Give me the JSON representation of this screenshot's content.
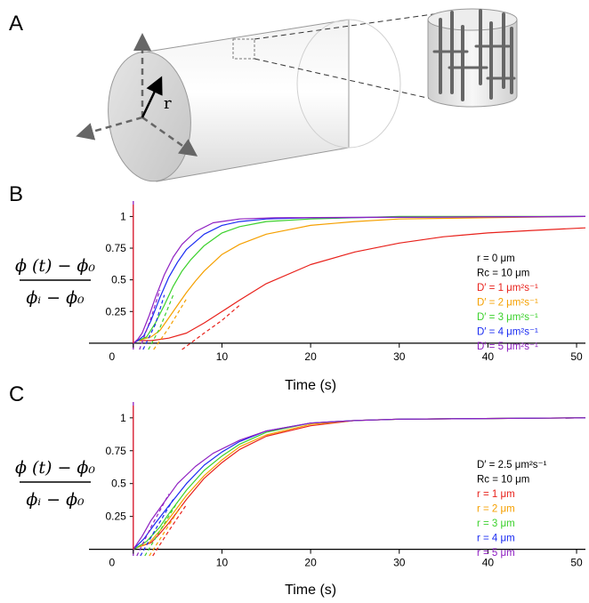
{
  "panels": {
    "a": "A",
    "b": "B",
    "c": "C"
  },
  "schematic": {
    "radius_label": "r"
  },
  "y_axis_label": {
    "numerator": "ϕ (t) − ϕ₀",
    "denominator": "ϕᵢ − ϕ₀"
  },
  "colors": {
    "red": "#e8211b",
    "orange": "#f5a000",
    "green": "#3bd12c",
    "blue": "#1a2bf2",
    "purple": "#8f20c2",
    "black": "#000000"
  },
  "chart_data": [
    {
      "type": "line",
      "panel": "B",
      "xlabel": "Time (s)",
      "xlim": [
        -5,
        51
      ],
      "ylim": [
        -0.05,
        1.08
      ],
      "x_ticks": [
        0,
        10,
        20,
        30,
        40,
        50
      ],
      "y_ticks": [
        0.25,
        0.5,
        0.75,
        1
      ],
      "legend_position": "right",
      "legend": [
        {
          "label": "r = 0 μm",
          "color": "#000000"
        },
        {
          "label": "Rc = 10 μm",
          "color": "#000000"
        },
        {
          "label": "D′ = 1 μm²s⁻¹",
          "color": "#e8211b"
        },
        {
          "label": "D′ = 2 μm²s⁻¹",
          "color": "#f5a000"
        },
        {
          "label": "D′ = 3 μm²s⁻¹",
          "color": "#3bd12c"
        },
        {
          "label": "D′ = 4 μm²s⁻¹",
          "color": "#1a2bf2"
        },
        {
          "label": "D′ = 5 μm²s⁻¹",
          "color": "#8f20c2"
        }
      ],
      "series": [
        {
          "color": "#e8211b",
          "solid": [
            [
              0.5,
              0.02
            ],
            [
              2,
              0.02
            ],
            [
              4,
              0.04
            ],
            [
              6,
              0.08
            ],
            [
              8,
              0.16
            ],
            [
              10,
              0.25
            ],
            [
              12,
              0.34
            ],
            [
              15,
              0.47
            ],
            [
              20,
              0.62
            ],
            [
              25,
              0.72
            ],
            [
              30,
              0.79
            ],
            [
              35,
              0.84
            ],
            [
              40,
              0.87
            ],
            [
              45,
              0.89
            ],
            [
              51,
              0.91
            ]
          ],
          "fit": [
            [
              5.5,
              -0.05
            ],
            [
              8,
              0.08
            ],
            [
              10,
              0.18
            ],
            [
              12,
              0.3
            ]
          ]
        },
        {
          "color": "#f5a000",
          "solid": [
            [
              0.5,
              0.02
            ],
            [
              2,
              0.05
            ],
            [
              3,
              0.1
            ],
            [
              4,
              0.2
            ],
            [
              5,
              0.3
            ],
            [
              6,
              0.4
            ],
            [
              7,
              0.49
            ],
            [
              8,
              0.57
            ],
            [
              10,
              0.7
            ],
            [
              12,
              0.78
            ],
            [
              15,
              0.86
            ],
            [
              20,
              0.93
            ],
            [
              25,
              0.96
            ],
            [
              30,
              0.98
            ],
            [
              40,
              0.99
            ],
            [
              51,
              1.0
            ]
          ],
          "fit": [
            [
              2.3,
              -0.05
            ],
            [
              4,
              0.12
            ],
            [
              6,
              0.35
            ]
          ]
        },
        {
          "color": "#3bd12c",
          "solid": [
            [
              0.5,
              0.02
            ],
            [
              1.5,
              0.05
            ],
            [
              2.5,
              0.16
            ],
            [
              3.5,
              0.3
            ],
            [
              4.5,
              0.45
            ],
            [
              5.5,
              0.57
            ],
            [
              6.5,
              0.66
            ],
            [
              8,
              0.77
            ],
            [
              10,
              0.87
            ],
            [
              12,
              0.92
            ],
            [
              15,
              0.96
            ],
            [
              20,
              0.98
            ],
            [
              30,
              1.0
            ],
            [
              51,
              1.0
            ]
          ],
          "fit": [
            [
              1.7,
              -0.05
            ],
            [
              3,
              0.12
            ],
            [
              4.5,
              0.38
            ]
          ]
        },
        {
          "color": "#1a2bf2",
          "solid": [
            [
              0.5,
              0.02
            ],
            [
              1.2,
              0.06
            ],
            [
              2,
              0.18
            ],
            [
              3,
              0.36
            ],
            [
              4,
              0.52
            ],
            [
              5,
              0.64
            ],
            [
              6,
              0.74
            ],
            [
              8,
              0.86
            ],
            [
              10,
              0.93
            ],
            [
              12,
              0.96
            ],
            [
              15,
              0.98
            ],
            [
              20,
              0.99
            ],
            [
              51,
              1.0
            ]
          ],
          "fit": [
            [
              1.1,
              -0.05
            ],
            [
              2.5,
              0.15
            ],
            [
              3.5,
              0.38
            ]
          ]
        },
        {
          "color": "#8f20c2",
          "solid": [
            [
              0.5,
              0.03
            ],
            [
              1,
              0.08
            ],
            [
              1.8,
              0.22
            ],
            [
              2.5,
              0.36
            ],
            [
              3.5,
              0.54
            ],
            [
              4.5,
              0.68
            ],
            [
              5.5,
              0.78
            ],
            [
              7,
              0.88
            ],
            [
              9,
              0.95
            ],
            [
              12,
              0.98
            ],
            [
              16,
              0.99
            ],
            [
              51,
              1.0
            ]
          ],
          "fit": [
            [
              0.7,
              -0.05
            ],
            [
              2,
              0.2
            ],
            [
              3,
              0.42
            ]
          ]
        }
      ]
    },
    {
      "type": "line",
      "panel": "C",
      "xlabel": "Time (s)",
      "xlim": [
        -5,
        51
      ],
      "ylim": [
        -0.05,
        1.08
      ],
      "x_ticks": [
        0,
        10,
        20,
        30,
        40,
        50
      ],
      "y_ticks": [
        0.25,
        0.5,
        0.75,
        1
      ],
      "legend_position": "right",
      "legend": [
        {
          "label": "D′ = 2.5 μm²s⁻¹",
          "color": "#000000"
        },
        {
          "label": "Rc = 10 μm",
          "color": "#000000"
        },
        {
          "label": "r = 1 μm",
          "color": "#e8211b"
        },
        {
          "label": "r = 2 μm",
          "color": "#f5a000"
        },
        {
          "label": "r = 3 μm",
          "color": "#3bd12c"
        },
        {
          "label": "r = 4 μm",
          "color": "#1a2bf2"
        },
        {
          "label": "r = 5 μm",
          "color": "#8f20c2"
        }
      ],
      "series": [
        {
          "color": "#e8211b",
          "solid": [
            [
              0.3,
              0.01
            ],
            [
              2,
              0.05
            ],
            [
              3,
              0.12
            ],
            [
              4,
              0.2
            ],
            [
              6,
              0.38
            ],
            [
              8,
              0.54
            ],
            [
              10,
              0.66
            ],
            [
              12,
              0.76
            ],
            [
              15,
              0.86
            ],
            [
              20,
              0.94
            ],
            [
              25,
              0.98
            ],
            [
              30,
              0.99
            ],
            [
              51,
              1.0
            ]
          ],
          "fit": [
            [
              2.2,
              -0.05
            ],
            [
              4,
              0.14
            ],
            [
              6,
              0.34
            ]
          ]
        },
        {
          "color": "#f5a000",
          "solid": [
            [
              0.3,
              0.01
            ],
            [
              1.8,
              0.05
            ],
            [
              3,
              0.14
            ],
            [
              4,
              0.23
            ],
            [
              6,
              0.41
            ],
            [
              8,
              0.56
            ],
            [
              10,
              0.68
            ],
            [
              12,
              0.78
            ],
            [
              15,
              0.87
            ],
            [
              20,
              0.95
            ],
            [
              25,
              0.98
            ],
            [
              30,
              0.99
            ],
            [
              51,
              1.0
            ]
          ],
          "fit": [
            [
              1.8,
              -0.05
            ],
            [
              3.5,
              0.13
            ],
            [
              5.5,
              0.34
            ]
          ]
        },
        {
          "color": "#3bd12c",
          "solid": [
            [
              0.3,
              0.01
            ],
            [
              1.5,
              0.06
            ],
            [
              3,
              0.17
            ],
            [
              4,
              0.27
            ],
            [
              6,
              0.45
            ],
            [
              8,
              0.6
            ],
            [
              10,
              0.71
            ],
            [
              12,
              0.8
            ],
            [
              15,
              0.89
            ],
            [
              20,
              0.96
            ],
            [
              25,
              0.98
            ],
            [
              30,
              0.99
            ],
            [
              51,
              1.0
            ]
          ],
          "fit": [
            [
              1.3,
              -0.05
            ],
            [
              3,
              0.14
            ],
            [
              5,
              0.36
            ]
          ]
        },
        {
          "color": "#1a2bf2",
          "solid": [
            [
              0.3,
              0.02
            ],
            [
              1.2,
              0.08
            ],
            [
              2.5,
              0.2
            ],
            [
              4,
              0.33
            ],
            [
              6,
              0.5
            ],
            [
              8,
              0.64
            ],
            [
              10,
              0.74
            ],
            [
              12,
              0.82
            ],
            [
              15,
              0.9
            ],
            [
              20,
              0.96
            ],
            [
              25,
              0.98
            ],
            [
              30,
              0.99
            ],
            [
              51,
              1.0
            ]
          ],
          "fit": [
            [
              0.8,
              -0.05
            ],
            [
              2.5,
              0.15
            ],
            [
              4.5,
              0.38
            ]
          ]
        },
        {
          "color": "#8f20c2",
          "solid": [
            [
              0.3,
              0.03
            ],
            [
              1,
              0.1
            ],
            [
              2,
              0.22
            ],
            [
              3.5,
              0.36
            ],
            [
              5,
              0.5
            ],
            [
              7,
              0.63
            ],
            [
              9,
              0.73
            ],
            [
              12,
              0.83
            ],
            [
              15,
              0.9
            ],
            [
              20,
              0.96
            ],
            [
              25,
              0.98
            ],
            [
              30,
              0.99
            ],
            [
              51,
              1.0
            ]
          ],
          "fit": [
            [
              0.4,
              -0.05
            ],
            [
              2,
              0.17
            ],
            [
              4,
              0.42
            ]
          ]
        }
      ]
    }
  ]
}
